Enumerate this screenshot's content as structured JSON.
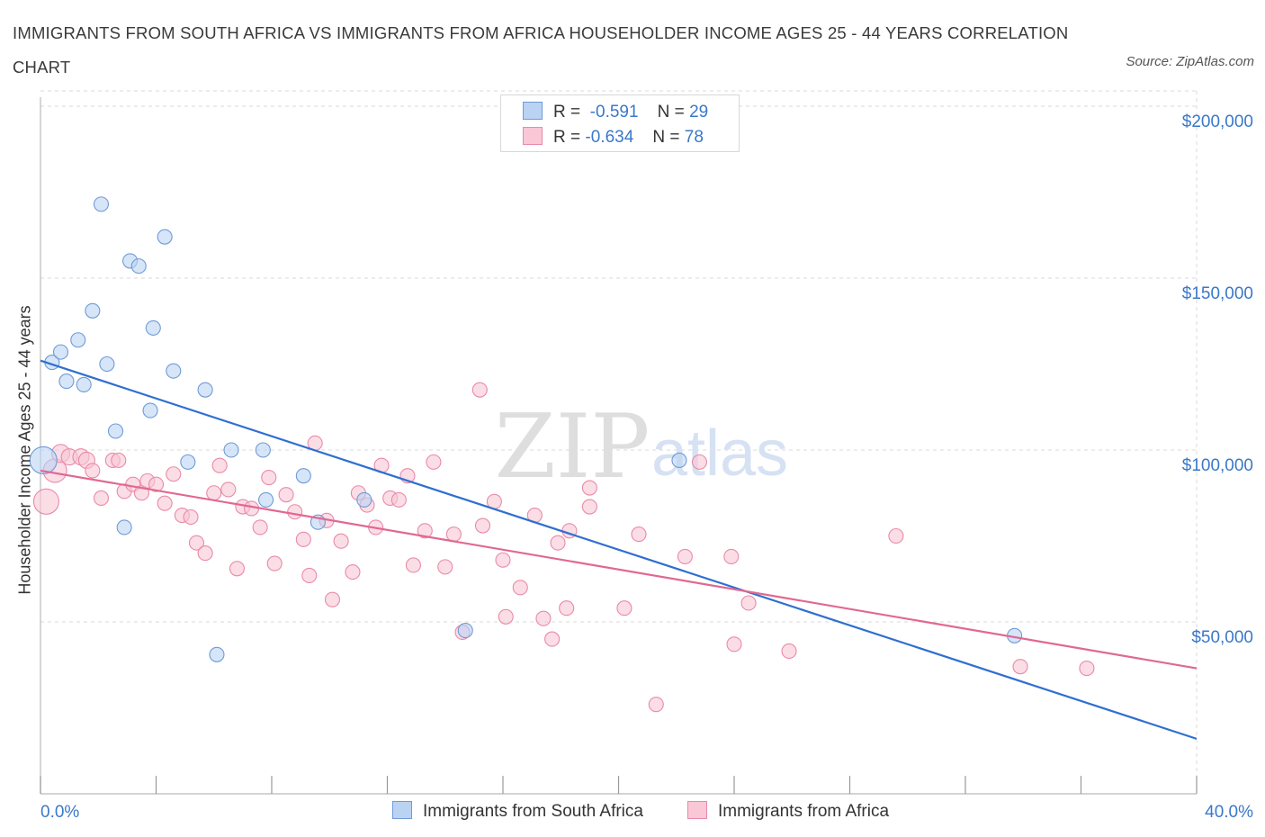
{
  "header": {
    "title": "IMMIGRANTS FROM SOUTH AFRICA VS IMMIGRANTS FROM AFRICA HOUSEHOLDER INCOME AGES 25 - 44 YEARS CORRELATION CHART",
    "source": "Source: ZipAtlas.com"
  },
  "legend": {
    "r_label": "R =",
    "n_label": "N =",
    "south_africa": {
      "r": "-0.591",
      "n": "29"
    },
    "africa": {
      "r": "-0.634",
      "n": "78"
    }
  },
  "watermark": {
    "zip": "ZIP",
    "atlas": "atlas"
  },
  "colors": {
    "south_africa_fill": "#bad3f3",
    "south_africa_stroke": "#6f9bd6",
    "south_africa_line": "#2f6fd0",
    "africa_fill": "#f9c7d6",
    "africa_stroke": "#e98aa9",
    "africa_line": "#e06892",
    "tick_label": "#3a78c9",
    "grid": "#d9d9d9"
  },
  "chart_data": {
    "type": "scatter",
    "title": "IMMIGRANTS FROM SOUTH AFRICA VS IMMIGRANTS FROM AFRICA HOUSEHOLDER INCOME AGES 25 - 44 YEARS CORRELATION CHART",
    "xlabel": "",
    "ylabel": "Householder Income Ages 25 - 44 years",
    "xlim": [
      0,
      40
    ],
    "ylim": [
      0,
      200000
    ],
    "x_tick_labels": [
      "0.0%",
      "40.0%"
    ],
    "y_ticks": [
      50000,
      100000,
      150000,
      200000
    ],
    "y_tick_labels": [
      "$50,000",
      "$100,000",
      "$150,000",
      "$200,000"
    ],
    "grid": true,
    "legend_position": "top-center",
    "series": [
      {
        "name": "Immigrants from South Africa",
        "trend": {
          "x": [
            0,
            40
          ],
          "y": [
            126000,
            16000
          ]
        },
        "points": [
          [
            0.1,
            97000,
            15
          ],
          [
            0.4,
            125500,
            8
          ],
          [
            0.7,
            128500,
            8
          ],
          [
            0.9,
            120000,
            8
          ],
          [
            1.3,
            132000,
            8
          ],
          [
            1.5,
            119000,
            8
          ],
          [
            1.8,
            140500,
            8
          ],
          [
            2.1,
            171500,
            8
          ],
          [
            2.3,
            125000,
            8
          ],
          [
            2.6,
            105500,
            8
          ],
          [
            2.9,
            77500,
            8
          ],
          [
            3.1,
            155000,
            8
          ],
          [
            3.4,
            153500,
            8
          ],
          [
            3.8,
            111500,
            8
          ],
          [
            3.9,
            135500,
            8
          ],
          [
            4.3,
            162000,
            8
          ],
          [
            4.6,
            123000,
            8
          ],
          [
            5.1,
            96500,
            8
          ],
          [
            5.7,
            117500,
            8
          ],
          [
            6.1,
            40500,
            8
          ],
          [
            6.6,
            100000,
            8
          ],
          [
            7.7,
            100000,
            8
          ],
          [
            7.8,
            85500,
            8
          ],
          [
            9.1,
            92500,
            8
          ],
          [
            9.6,
            79000,
            8
          ],
          [
            11.2,
            85500,
            8
          ],
          [
            14.7,
            47500,
            8
          ],
          [
            22.1,
            97000,
            8
          ],
          [
            33.7,
            46000,
            8
          ]
        ]
      },
      {
        "name": "Immigrants from Africa",
        "trend": {
          "x": [
            0,
            40
          ],
          "y": [
            94000,
            36500
          ]
        },
        "points": [
          [
            0.2,
            85000,
            14
          ],
          [
            0.5,
            94000,
            13
          ],
          [
            0.7,
            99000,
            10
          ],
          [
            1.0,
            98000,
            9
          ],
          [
            1.4,
            98000,
            9
          ],
          [
            1.6,
            97000,
            9
          ],
          [
            1.8,
            94000,
            8
          ],
          [
            2.1,
            86000,
            8
          ],
          [
            2.5,
            97000,
            8
          ],
          [
            2.7,
            97000,
            8
          ],
          [
            2.9,
            88000,
            8
          ],
          [
            3.2,
            90000,
            8
          ],
          [
            3.5,
            87500,
            8
          ],
          [
            3.7,
            91000,
            8
          ],
          [
            4.0,
            90000,
            8
          ],
          [
            4.3,
            84500,
            8
          ],
          [
            4.6,
            93000,
            8
          ],
          [
            4.9,
            81000,
            8
          ],
          [
            5.2,
            80500,
            8
          ],
          [
            5.4,
            73000,
            8
          ],
          [
            5.7,
            70000,
            8
          ],
          [
            6.0,
            87500,
            8
          ],
          [
            6.2,
            95500,
            8
          ],
          [
            6.5,
            88500,
            8
          ],
          [
            6.8,
            65500,
            8
          ],
          [
            7.0,
            83500,
            8
          ],
          [
            7.3,
            83000,
            8
          ],
          [
            7.6,
            77500,
            8
          ],
          [
            7.9,
            92000,
            8
          ],
          [
            8.1,
            67000,
            8
          ],
          [
            8.5,
            87000,
            8
          ],
          [
            8.8,
            82000,
            8
          ],
          [
            9.1,
            74000,
            8
          ],
          [
            9.3,
            63500,
            8
          ],
          [
            9.5,
            102000,
            8
          ],
          [
            9.9,
            79500,
            8
          ],
          [
            10.1,
            56500,
            8
          ],
          [
            10.4,
            73500,
            8
          ],
          [
            10.8,
            64500,
            8
          ],
          [
            11.0,
            87500,
            8
          ],
          [
            11.3,
            84000,
            8
          ],
          [
            11.6,
            77500,
            8
          ],
          [
            11.8,
            95500,
            8
          ],
          [
            12.1,
            86000,
            8
          ],
          [
            12.4,
            85500,
            8
          ],
          [
            12.7,
            92500,
            8
          ],
          [
            12.9,
            66500,
            8
          ],
          [
            13.3,
            76500,
            8
          ],
          [
            13.6,
            96500,
            8
          ],
          [
            14.0,
            66000,
            8
          ],
          [
            14.3,
            75500,
            8
          ],
          [
            14.6,
            47000,
            8
          ],
          [
            15.2,
            117500,
            8
          ],
          [
            15.3,
            78000,
            8
          ],
          [
            15.7,
            85000,
            8
          ],
          [
            16.0,
            68000,
            8
          ],
          [
            16.1,
            51500,
            8
          ],
          [
            16.6,
            60000,
            8
          ],
          [
            17.1,
            81000,
            8
          ],
          [
            17.4,
            51000,
            8
          ],
          [
            17.7,
            45000,
            8
          ],
          [
            17.9,
            73000,
            8
          ],
          [
            18.2,
            54000,
            8
          ],
          [
            18.3,
            76500,
            8
          ],
          [
            19.0,
            83500,
            8
          ],
          [
            19.0,
            89000,
            8
          ],
          [
            20.2,
            54000,
            8
          ],
          [
            20.7,
            75500,
            8
          ],
          [
            21.3,
            26000,
            8
          ],
          [
            22.3,
            69000,
            8
          ],
          [
            22.8,
            96500,
            8
          ],
          [
            23.9,
            69000,
            8
          ],
          [
            24.0,
            43500,
            8
          ],
          [
            24.5,
            55500,
            8
          ],
          [
            25.9,
            41500,
            8
          ],
          [
            29.6,
            75000,
            8
          ],
          [
            33.9,
            37000,
            8
          ],
          [
            36.2,
            36500,
            8
          ]
        ]
      }
    ]
  }
}
